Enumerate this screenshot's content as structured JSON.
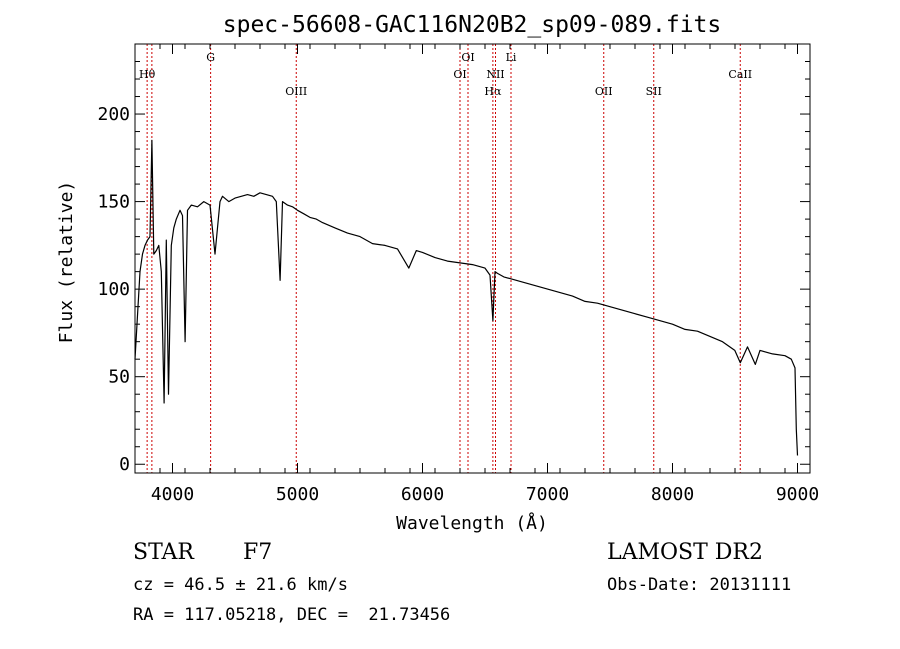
{
  "chart_data": {
    "type": "line",
    "title": "spec-56608-GAC116N20B2_sp09-089.fits",
    "xlabel": "Wavelength (Å)",
    "ylabel": "Flux (relative)",
    "xlim": [
      3700,
      9100
    ],
    "ylim": [
      -5,
      240
    ],
    "xticks": [
      4000,
      5000,
      6000,
      7000,
      8000,
      9000
    ],
    "yticks": [
      0,
      50,
      100,
      150,
      200
    ],
    "grid": false,
    "line_color": "#000000",
    "marker_color": "#cc0000",
    "line_markers": [
      {
        "label": "Hθ",
        "x": 3797,
        "row": 2
      },
      {
        "label": "",
        "x": 3835,
        "row": 2
      },
      {
        "label": "G",
        "x": 4305,
        "row": 1
      },
      {
        "label": "OIII",
        "x": 4990,
        "row": 3
      },
      {
        "label": "OI",
        "x": 6300,
        "row": 2
      },
      {
        "label": "OI",
        "x": 6364,
        "row": 1
      },
      {
        "label": "Hα",
        "x": 6563,
        "row": 3
      },
      {
        "label": "NII",
        "x": 6584,
        "row": 2
      },
      {
        "label": "Li",
        "x": 6708,
        "row": 1
      },
      {
        "label": "OII",
        "x": 7450,
        "row": 3
      },
      {
        "label": "SII",
        "x": 7850,
        "row": 3
      },
      {
        "label": "CaII",
        "x": 8542,
        "row": 2
      }
    ],
    "series": [
      {
        "x": [
          3700,
          3720,
          3740,
          3760,
          3780,
          3800,
          3820,
          3835,
          3850,
          3870,
          3890,
          3910,
          3933,
          3950,
          3968,
          3990,
          4010,
          4030,
          4060,
          4080,
          4101,
          4120,
          4150,
          4200,
          4250,
          4300,
          4340,
          4380,
          4400,
          4450,
          4500,
          4550,
          4600,
          4650,
          4700,
          4750,
          4800,
          4830,
          4861,
          4880,
          4920,
          4960,
          5000,
          5050,
          5100,
          5150,
          5200,
          5300,
          5400,
          5500,
          5600,
          5700,
          5800,
          5890,
          5950,
          6000,
          6100,
          6200,
          6300,
          6400,
          6500,
          6540,
          6563,
          6580,
          6600,
          6650,
          6700,
          6800,
          6900,
          7000,
          7100,
          7200,
          7300,
          7400,
          7500,
          7600,
          7700,
          7800,
          7900,
          8000,
          8100,
          8200,
          8300,
          8400,
          8498,
          8542,
          8600,
          8662,
          8700,
          8800,
          8900,
          8950,
          8980,
          8990,
          9000
        ],
        "y": [
          60,
          85,
          110,
          120,
          125,
          128,
          130,
          185,
          120,
          122,
          125,
          110,
          35,
          128,
          40,
          125,
          135,
          140,
          145,
          142,
          70,
          145,
          148,
          147,
          150,
          148,
          120,
          150,
          153,
          150,
          152,
          153,
          154,
          153,
          155,
          154,
          153,
          150,
          105,
          150,
          148,
          147,
          145,
          143,
          141,
          140,
          138,
          135,
          132,
          130,
          126,
          125,
          123,
          112,
          122,
          121,
          118,
          116,
          115,
          114,
          112,
          108,
          82,
          110,
          109,
          107,
          106,
          104,
          102,
          100,
          98,
          96,
          93,
          92,
          90,
          88,
          86,
          84,
          82,
          80,
          77,
          76,
          73,
          70,
          65,
          58,
          67,
          57,
          65,
          63,
          62,
          60,
          55,
          20,
          5
        ]
      }
    ]
  },
  "info": {
    "object_class": "STAR",
    "subclass": "F7",
    "survey": "LAMOST DR2",
    "cz": "cz = 46.5 ± 21.6 km/s",
    "obs_date": "Obs-Date: 20131111",
    "coords": "RA = 117.05218, DEC =  21.73456"
  }
}
